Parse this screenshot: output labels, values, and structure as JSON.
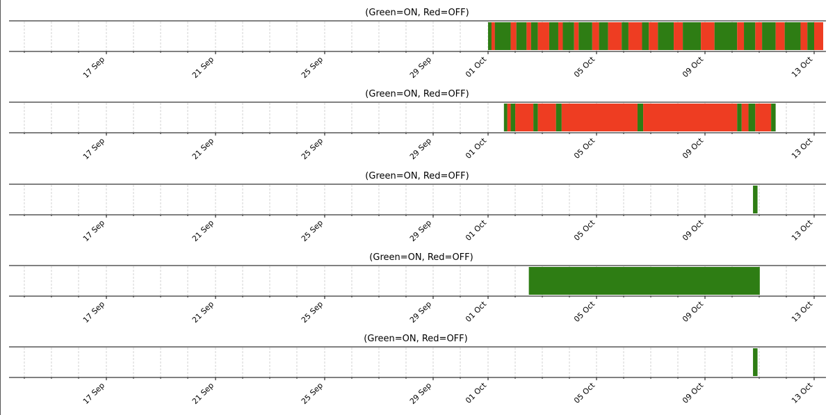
{
  "colors": {
    "on": "#2e7d14",
    "off": "#ee3d22",
    "grid": "#c8c8c8",
    "axis": "#000000"
  },
  "legend_text": "(Green=ON, Red=OFF)",
  "chart_data": [
    {
      "type": "timeline",
      "title": "(Green=ON, Red=OFF)",
      "x_ticks": [
        "17 Sep",
        "21 Sep",
        "25 Sep",
        "29 Sep",
        "01 Oct",
        "05 Oct",
        "09 Oct",
        "13 Oct"
      ],
      "grid": true,
      "segments": [
        {
          "state": "ON",
          "start": "2024-10-01T00:00",
          "end": "2024-10-01T03:00"
        },
        {
          "state": "OFF",
          "start": "2024-10-01T03:00",
          "end": "2024-10-01T06:00"
        },
        {
          "state": "ON",
          "start": "2024-10-01T06:00",
          "end": "2024-10-01T20:00"
        },
        {
          "state": "OFF",
          "start": "2024-10-01T20:00",
          "end": "2024-10-02T01:00"
        },
        {
          "state": "ON",
          "start": "2024-10-02T01:00",
          "end": "2024-10-02T10:00"
        },
        {
          "state": "OFF",
          "start": "2024-10-02T10:00",
          "end": "2024-10-02T14:00"
        },
        {
          "state": "ON",
          "start": "2024-10-02T14:00",
          "end": "2024-10-02T20:00"
        },
        {
          "state": "OFF",
          "start": "2024-10-02T20:00",
          "end": "2024-10-03T06:00"
        },
        {
          "state": "ON",
          "start": "2024-10-03T06:00",
          "end": "2024-10-03T14:00"
        },
        {
          "state": "OFF",
          "start": "2024-10-03T14:00",
          "end": "2024-10-03T18:00"
        },
        {
          "state": "ON",
          "start": "2024-10-03T18:00",
          "end": "2024-10-04T04:00"
        },
        {
          "state": "OFF",
          "start": "2024-10-04T04:00",
          "end": "2024-10-04T08:00"
        },
        {
          "state": "ON",
          "start": "2024-10-04T08:00",
          "end": "2024-10-04T20:00"
        },
        {
          "state": "OFF",
          "start": "2024-10-04T20:00",
          "end": "2024-10-05T02:00"
        },
        {
          "state": "ON",
          "start": "2024-10-05T02:00",
          "end": "2024-10-05T10:00"
        },
        {
          "state": "OFF",
          "start": "2024-10-05T10:00",
          "end": "2024-10-05T22:00"
        },
        {
          "state": "ON",
          "start": "2024-10-05T22:00",
          "end": "2024-10-06T04:00"
        },
        {
          "state": "OFF",
          "start": "2024-10-06T04:00",
          "end": "2024-10-06T16:00"
        },
        {
          "state": "ON",
          "start": "2024-10-06T16:00",
          "end": "2024-10-06T22:00"
        },
        {
          "state": "OFF",
          "start": "2024-10-06T22:00",
          "end": "2024-10-07T06:00"
        },
        {
          "state": "ON",
          "start": "2024-10-07T06:00",
          "end": "2024-10-07T20:00"
        },
        {
          "state": "OFF",
          "start": "2024-10-07T20:00",
          "end": "2024-10-08T04:00"
        },
        {
          "state": "ON",
          "start": "2024-10-08T04:00",
          "end": "2024-10-08T20:00"
        },
        {
          "state": "OFF",
          "start": "2024-10-08T20:00",
          "end": "2024-10-09T08:00"
        },
        {
          "state": "ON",
          "start": "2024-10-09T08:00",
          "end": "2024-10-10T04:00"
        },
        {
          "state": "OFF",
          "start": "2024-10-10T04:00",
          "end": "2024-10-10T10:00"
        },
        {
          "state": "ON",
          "start": "2024-10-10T10:00",
          "end": "2024-10-10T20:00"
        },
        {
          "state": "OFF",
          "start": "2024-10-10T20:00",
          "end": "2024-10-11T02:00"
        },
        {
          "state": "ON",
          "start": "2024-10-11T02:00",
          "end": "2024-10-11T14:00"
        },
        {
          "state": "OFF",
          "start": "2024-10-11T14:00",
          "end": "2024-10-11T22:00"
        },
        {
          "state": "ON",
          "start": "2024-10-11T22:00",
          "end": "2024-10-12T12:00"
        },
        {
          "state": "OFF",
          "start": "2024-10-12T12:00",
          "end": "2024-10-12T18:00"
        },
        {
          "state": "ON",
          "start": "2024-10-12T18:00",
          "end": "2024-10-13T00:00"
        },
        {
          "state": "OFF",
          "start": "2024-10-13T00:00",
          "end": "2024-10-13T08:00"
        }
      ]
    },
    {
      "type": "timeline",
      "title": "(Green=ON, Red=OFF)",
      "x_ticks": [
        "17 Sep",
        "21 Sep",
        "25 Sep",
        "29 Sep",
        "01 Oct",
        "05 Oct",
        "09 Oct",
        "13 Oct"
      ],
      "grid": true,
      "segments": [
        {
          "state": "ON",
          "start": "2024-10-01T14:00",
          "end": "2024-10-01T17:00"
        },
        {
          "state": "OFF",
          "start": "2024-10-01T17:00",
          "end": "2024-10-01T20:00"
        },
        {
          "state": "ON",
          "start": "2024-10-01T20:00",
          "end": "2024-10-02T00:00"
        },
        {
          "state": "OFF",
          "start": "2024-10-02T00:00",
          "end": "2024-10-02T16:00"
        },
        {
          "state": "ON",
          "start": "2024-10-02T16:00",
          "end": "2024-10-02T20:00"
        },
        {
          "state": "OFF",
          "start": "2024-10-02T20:00",
          "end": "2024-10-03T12:00"
        },
        {
          "state": "ON",
          "start": "2024-10-03T12:00",
          "end": "2024-10-03T17:00"
        },
        {
          "state": "OFF",
          "start": "2024-10-03T17:00",
          "end": "2024-10-06T12:00"
        },
        {
          "state": "ON",
          "start": "2024-10-06T12:00",
          "end": "2024-10-06T17:00"
        },
        {
          "state": "OFF",
          "start": "2024-10-06T17:00",
          "end": "2024-10-10T04:00"
        },
        {
          "state": "ON",
          "start": "2024-10-10T04:00",
          "end": "2024-10-10T08:00"
        },
        {
          "state": "OFF",
          "start": "2024-10-10T08:00",
          "end": "2024-10-10T14:00"
        },
        {
          "state": "ON",
          "start": "2024-10-10T14:00",
          "end": "2024-10-10T20:00"
        },
        {
          "state": "OFF",
          "start": "2024-10-10T20:00",
          "end": "2024-10-11T10:00"
        },
        {
          "state": "ON",
          "start": "2024-10-11T10:00",
          "end": "2024-10-11T14:00"
        }
      ]
    },
    {
      "type": "timeline",
      "title": "(Green=ON, Red=OFF)",
      "x_ticks": [
        "17 Sep",
        "21 Sep",
        "25 Sep",
        "29 Sep",
        "01 Oct",
        "05 Oct",
        "09 Oct",
        "13 Oct"
      ],
      "grid": true,
      "segments": [
        {
          "state": "ON",
          "start": "2024-10-10T18:00",
          "end": "2024-10-10T22:00"
        }
      ]
    },
    {
      "type": "timeline",
      "title": "(Green=ON, Red=OFF)",
      "x_ticks": [
        "17 Sep",
        "21 Sep",
        "25 Sep",
        "29 Sep",
        "01 Oct",
        "05 Oct",
        "09 Oct",
        "13 Oct"
      ],
      "grid": true,
      "segments": [
        {
          "state": "ON",
          "start": "2024-10-02T12:00",
          "end": "2024-10-11T00:00"
        }
      ]
    },
    {
      "type": "timeline",
      "title": "(Green=ON, Red=OFF)",
      "x_ticks": [
        "17 Sep",
        "21 Sep",
        "25 Sep",
        "29 Sep",
        "01 Oct",
        "05 Oct",
        "09 Oct",
        "13 Oct"
      ],
      "grid": true,
      "segments": [
        {
          "state": "ON",
          "start": "2024-10-10T18:00",
          "end": "2024-10-10T22:00"
        }
      ]
    }
  ]
}
